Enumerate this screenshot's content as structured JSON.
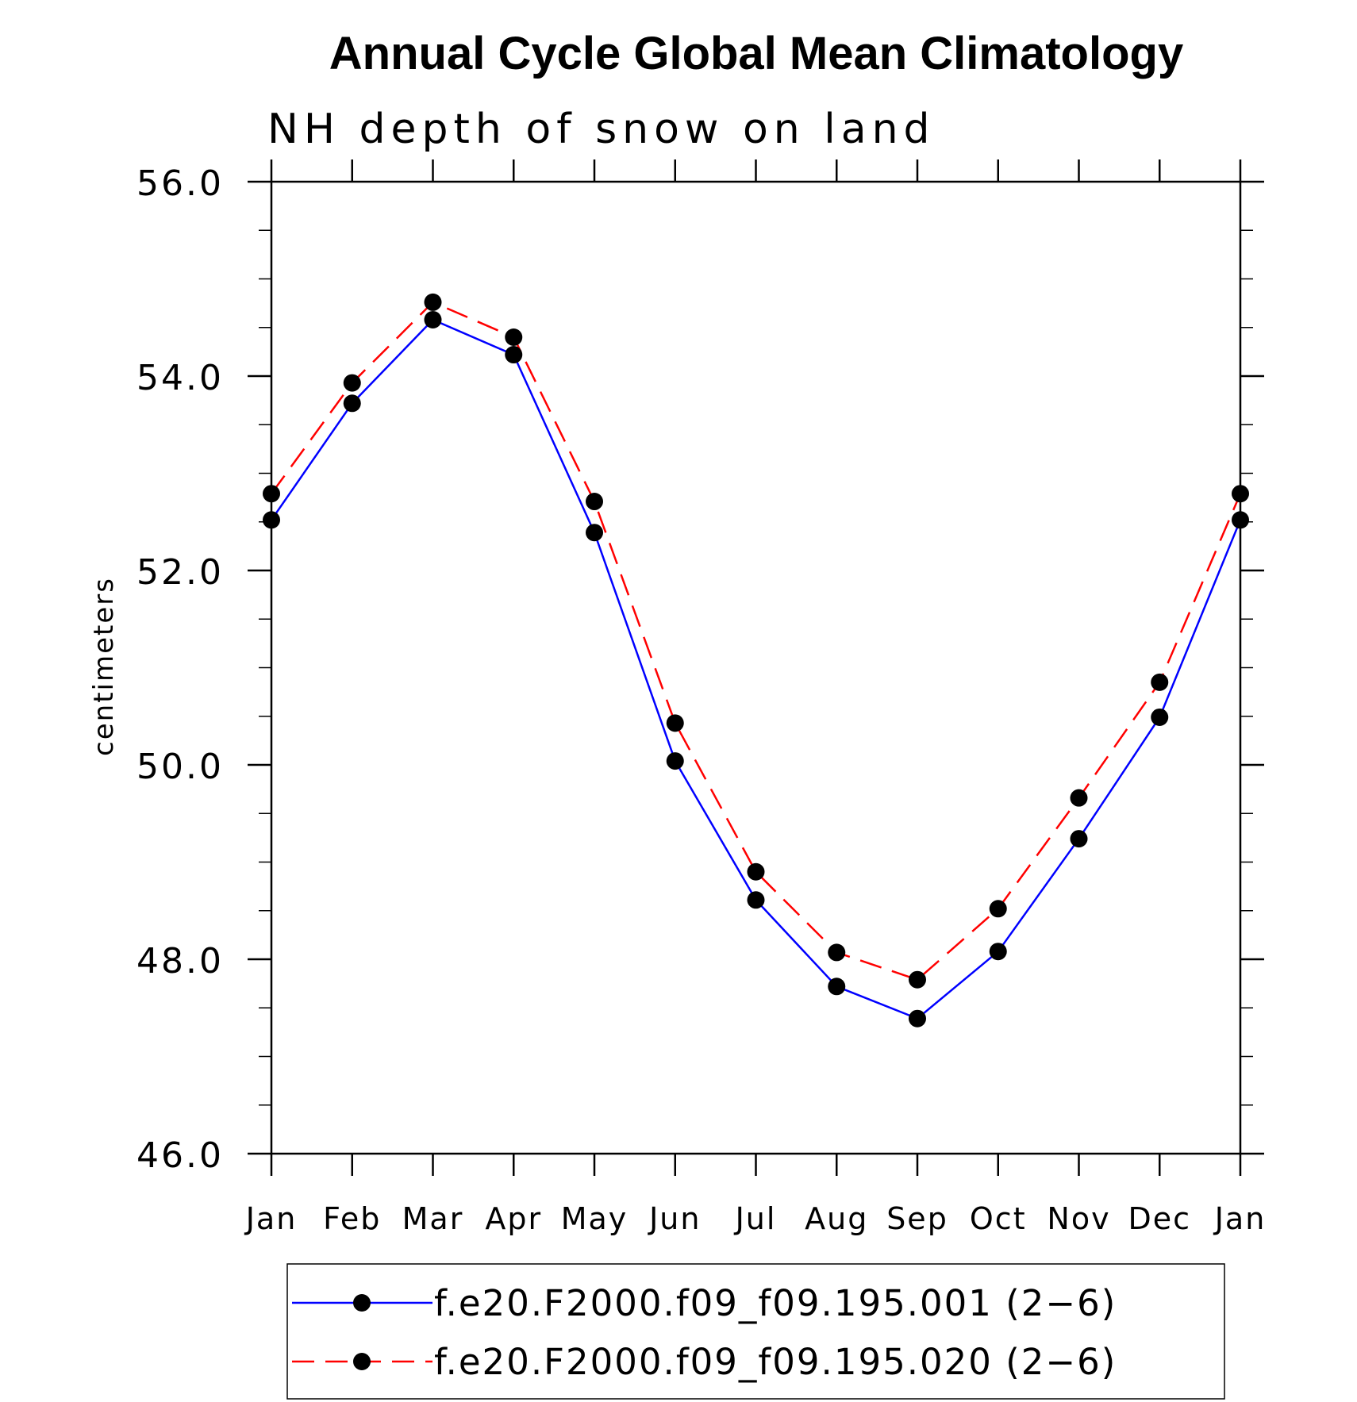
{
  "chart_data": {
    "type": "line",
    "title": "Annual Cycle Global Mean Climatology",
    "subtitle": "NH depth of snow on land",
    "xlabel": "",
    "ylabel": "centimeters",
    "ylim": [
      46.0,
      56.0
    ],
    "yticks": [
      "46.0",
      "48.0",
      "50.0",
      "52.0",
      "54.0",
      "56.0"
    ],
    "categories": [
      "Jan",
      "Feb",
      "Mar",
      "Apr",
      "May",
      "Jun",
      "Jul",
      "Aug",
      "Sep",
      "Oct",
      "Nov",
      "Dec",
      "Jan"
    ],
    "series": [
      {
        "name": "f.e20.F2000.f09_f09.195.001 (2−6)",
        "color": "#0000ff",
        "dash": "solid",
        "values": [
          52.52,
          53.72,
          54.58,
          54.22,
          52.39,
          50.04,
          48.61,
          47.72,
          47.39,
          48.08,
          49.24,
          50.49,
          52.52
        ]
      },
      {
        "name": "f.e20.F2000.f09_f09.195.020 (2−6)",
        "color": "#ff0000",
        "dash": "dashed",
        "values": [
          52.79,
          53.93,
          54.76,
          54.4,
          52.71,
          50.43,
          48.9,
          48.07,
          47.79,
          48.52,
          49.66,
          50.85,
          52.79
        ]
      }
    ],
    "marker": "filled-circle",
    "grid": false,
    "legend_position": "bottom"
  }
}
